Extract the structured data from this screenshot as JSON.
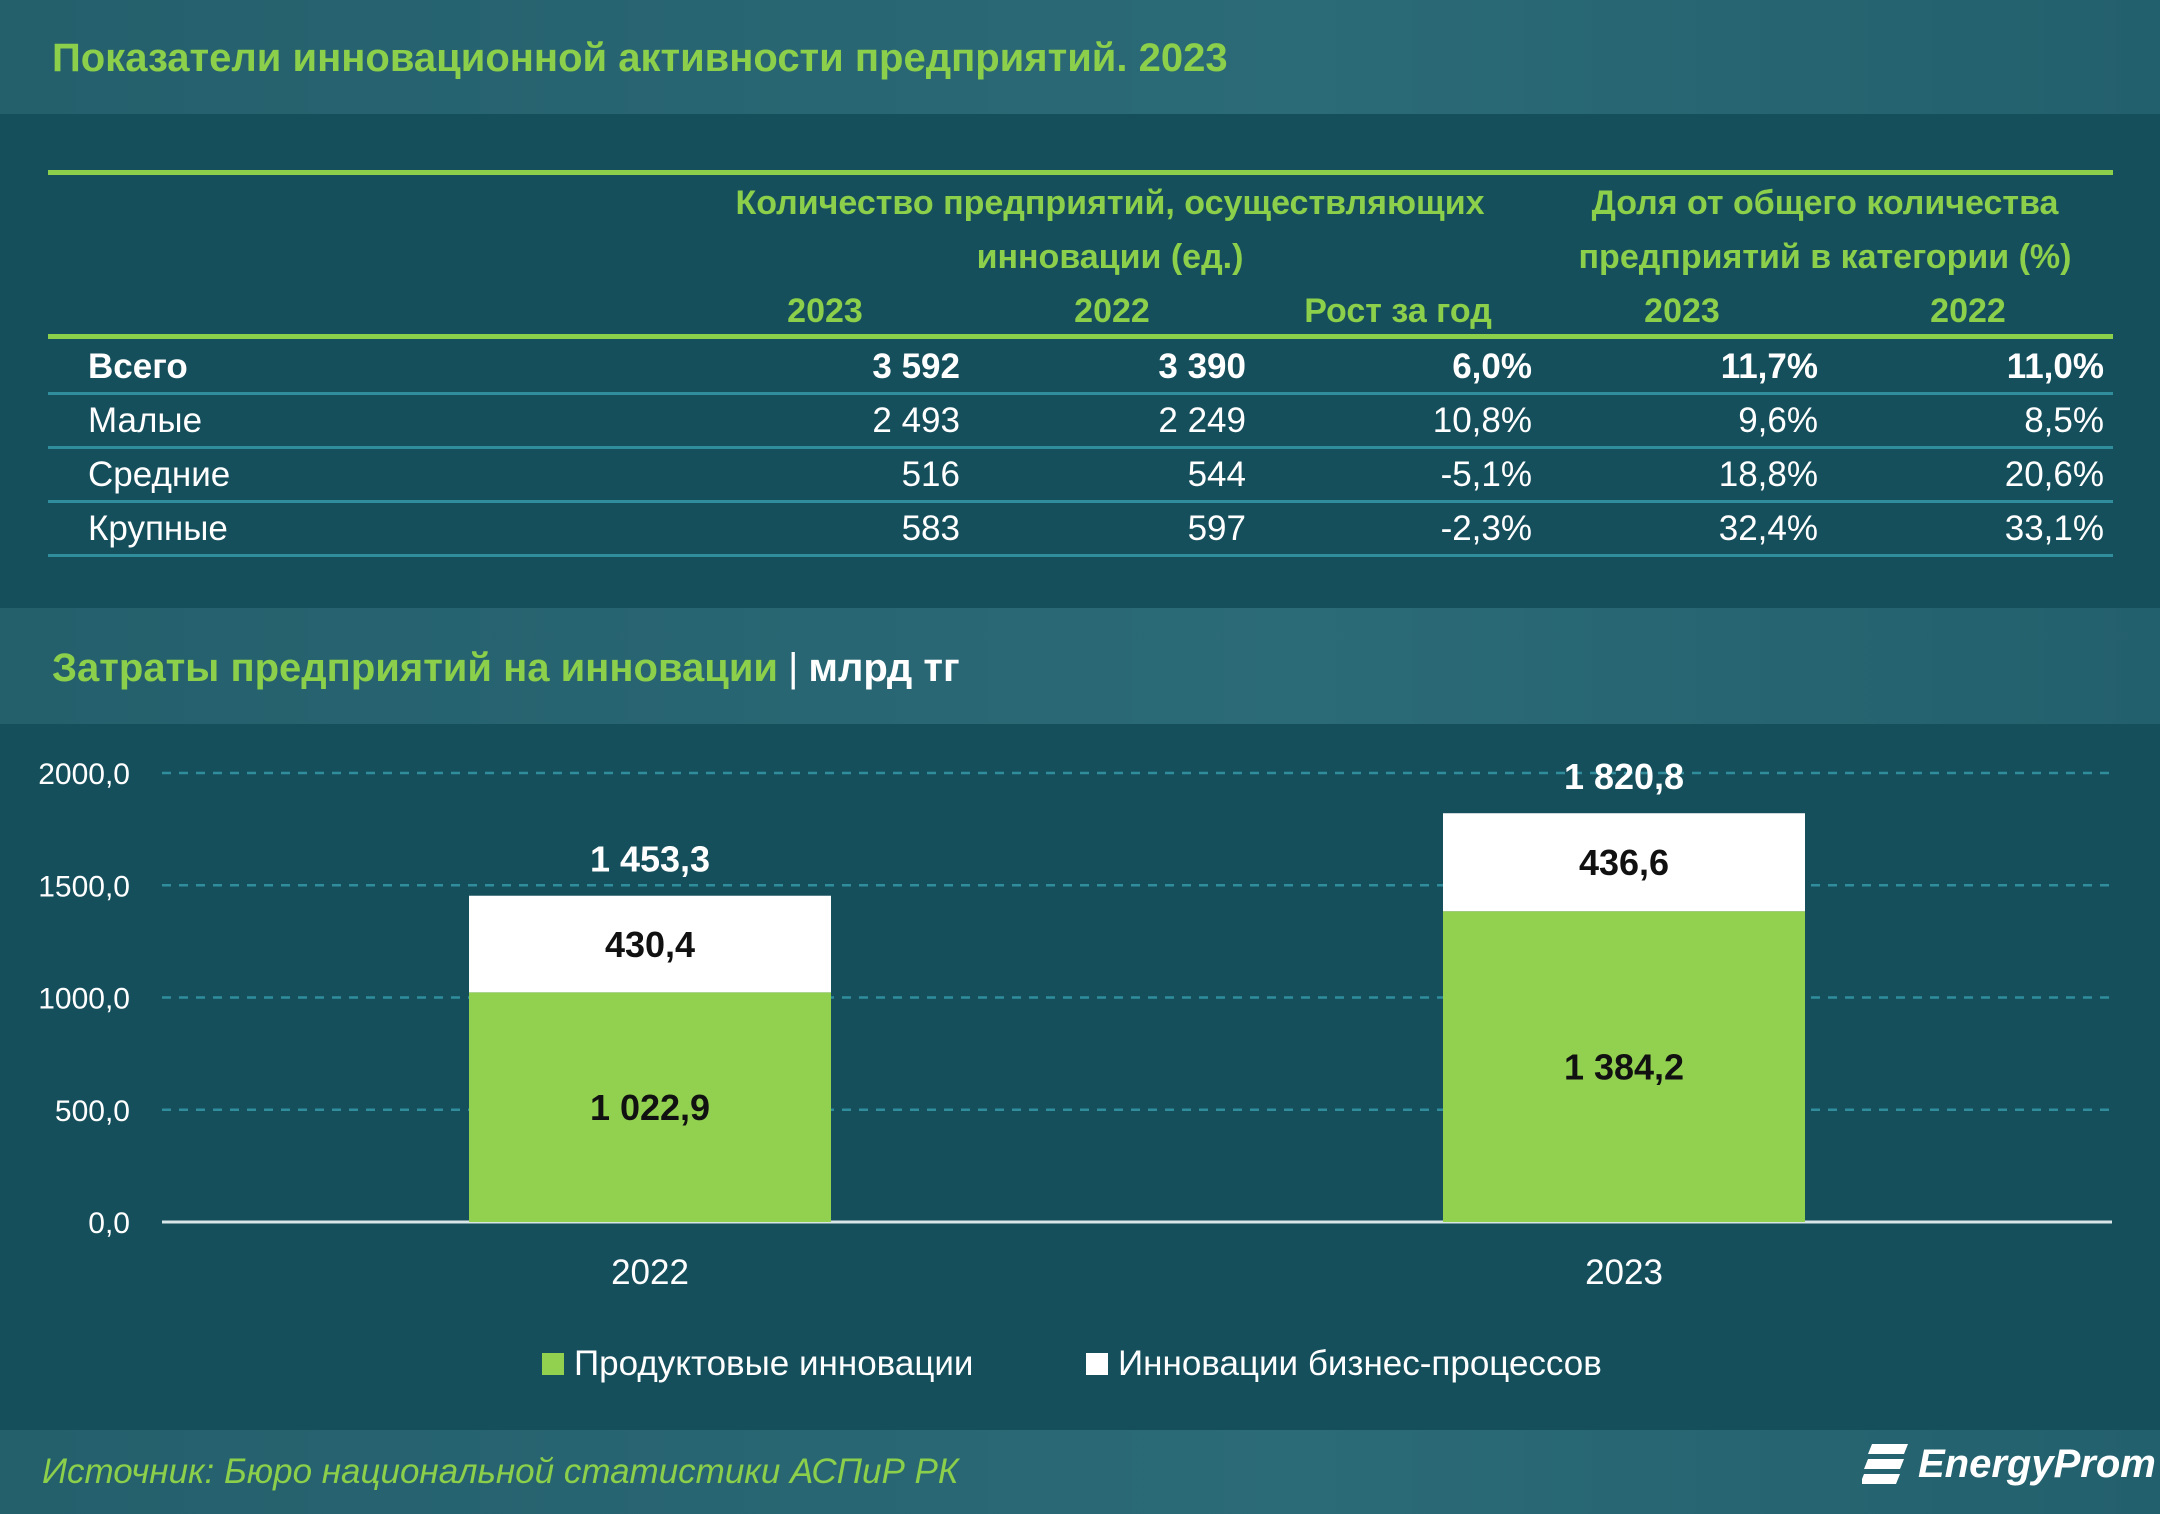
{
  "table": {
    "title": "Показатели инновационной активности предприятий. 2023",
    "group1_header": [
      "Количество предприятий, осуществляющих",
      "инновации (ед.)"
    ],
    "group2_header": [
      "Доля от общего количества",
      "предприятий в категории (%)"
    ],
    "subheaders": [
      "2023",
      "2022",
      "Рост за год",
      "2023",
      "2022"
    ],
    "rows": [
      {
        "label": "Всего",
        "cells": [
          "3 592",
          "3 390",
          "6,0%",
          "11,7%",
          "11,0%"
        ]
      },
      {
        "label": "Малые",
        "cells": [
          "2 493",
          "2 249",
          "10,8%",
          "9,6%",
          "8,5%"
        ]
      },
      {
        "label": "Средние",
        "cells": [
          "516",
          "544",
          "-5,1%",
          "18,8%",
          "20,6%"
        ]
      },
      {
        "label": "Крупные",
        "cells": [
          "583",
          "597",
          "-2,3%",
          "32,4%",
          "33,1%"
        ]
      }
    ]
  },
  "chart_section": {
    "title": "Затраты предприятий на инновации",
    "separator": "|",
    "unit": "млрд тг"
  },
  "chart_data": {
    "type": "bar",
    "stacked": true,
    "categories": [
      "2022",
      "2023"
    ],
    "series": [
      {
        "name": "Продуктовые инновации",
        "values": [
          1022.9,
          1384.2
        ],
        "labels": [
          "1 022,9",
          "1 384,2"
        ],
        "color": "#92d050"
      },
      {
        "name": "Инновации бизнес-процессов",
        "values": [
          430.4,
          436.6
        ],
        "labels": [
          "430,4",
          "436,6"
        ],
        "color": "#ffffff"
      }
    ],
    "totals": [
      1453.3,
      1820.8
    ],
    "total_labels": [
      "1 453,3",
      "1 820,8"
    ],
    "ylim": [
      0,
      2000
    ],
    "yticks": [
      "0,0",
      "500,0",
      "1000,0",
      "1500,0",
      "2000,0"
    ],
    "grid": true,
    "legend_position": "bottom"
  },
  "footer": {
    "source": "Источник: Бюро национальной статистики АСПиР РК",
    "logo_text": "EnergyProm"
  },
  "colors": {
    "background": "#164f5c",
    "band": "#2b6a77",
    "accent_green": "#8ccf4a",
    "bar_green": "#92d050",
    "grid": "#2f8d9c"
  }
}
